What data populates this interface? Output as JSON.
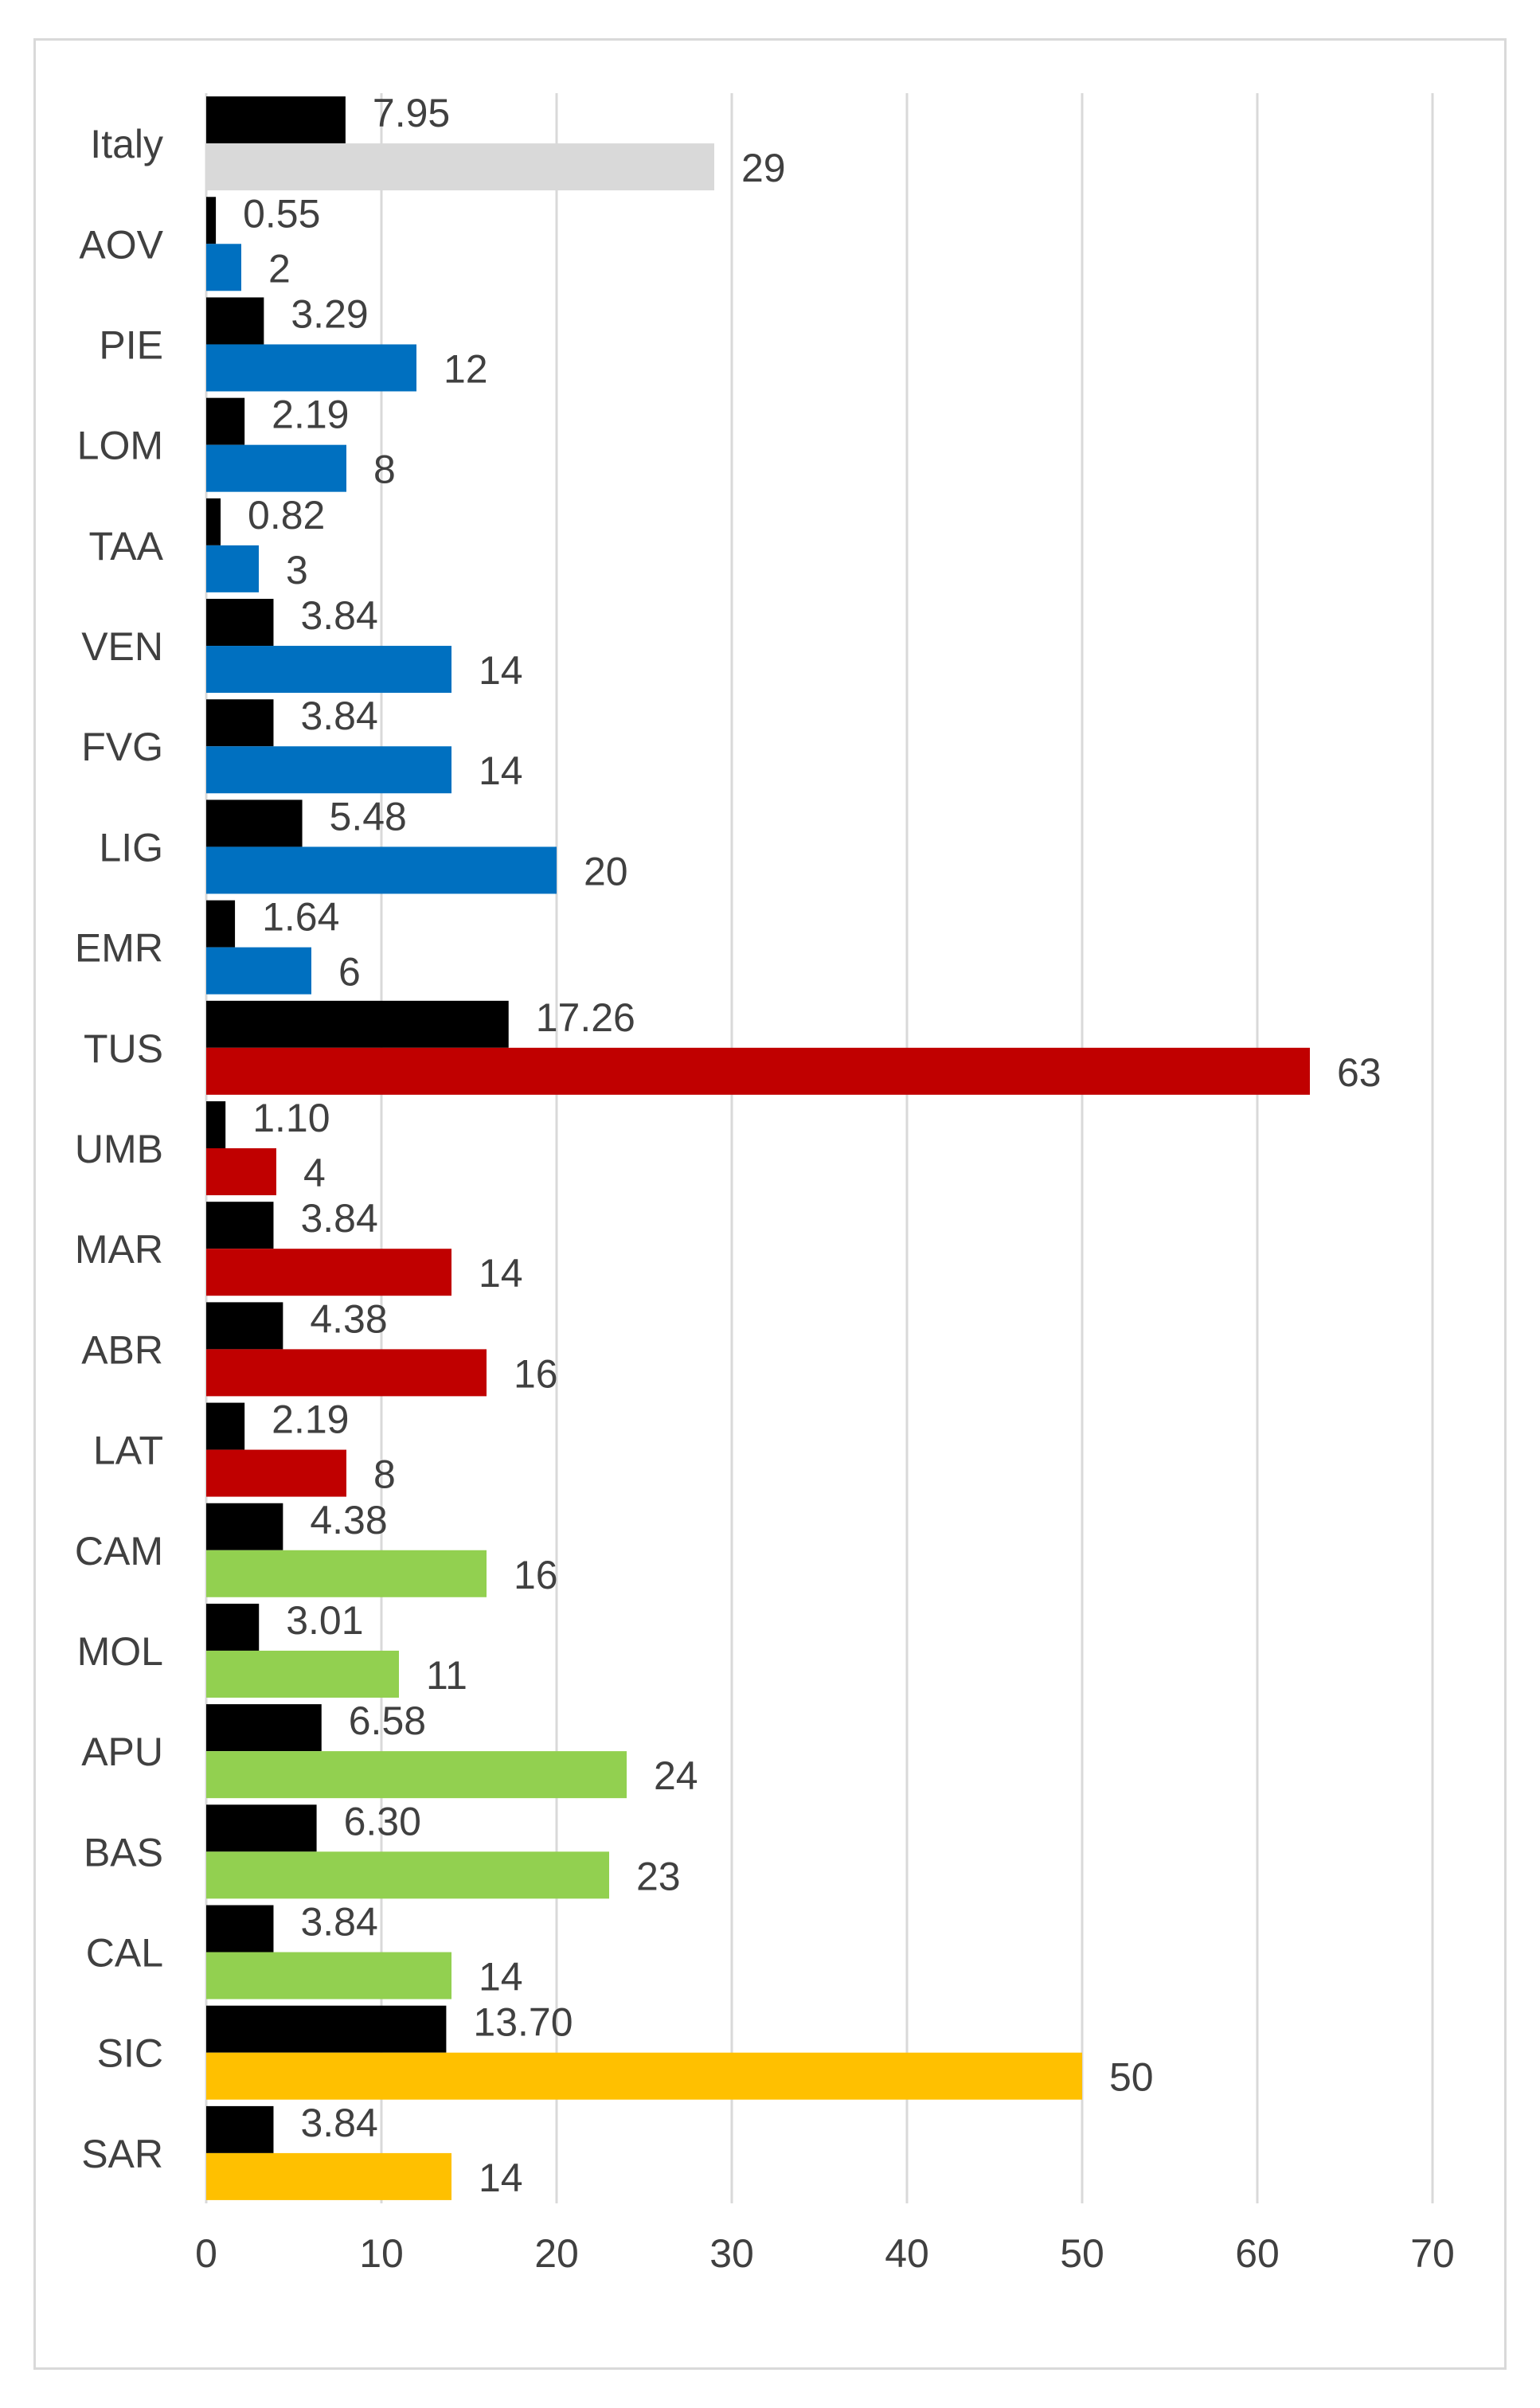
{
  "chart_data": {
    "type": "bar",
    "orientation": "horizontal",
    "categories": [
      "Italy",
      "AOV",
      "PIE",
      "LOM",
      "TAA",
      "VEN",
      "FVG",
      "LIG",
      "EMR",
      "TUS",
      "UMB",
      "MAR",
      "ABR",
      "LAT",
      "CAM",
      "MOL",
      "APU",
      "BAS",
      "CAL",
      "SIC",
      "SAR"
    ],
    "series": [
      {
        "values": [
          7.95,
          0.55,
          3.29,
          2.19,
          0.82,
          3.84,
          3.84,
          5.48,
          1.64,
          17.26,
          1.1,
          3.84,
          4.38,
          2.19,
          4.38,
          3.01,
          6.58,
          6.3,
          3.84,
          13.7,
          3.84
        ],
        "labels": [
          "7.95",
          "0.55",
          "3.29",
          "2.19",
          "0.82",
          "3.84",
          "3.84",
          "5.48",
          "1.64",
          "17.26",
          "1.10",
          "3.84",
          "4.38",
          "2.19",
          "4.38",
          "3.01",
          "6.58",
          "6.30",
          "3.84",
          "13.70",
          "3.84"
        ],
        "color": "#000000"
      },
      {
        "values": [
          29,
          2,
          12,
          8,
          3,
          14,
          14,
          20,
          6,
          63,
          4,
          14,
          16,
          8,
          16,
          11,
          24,
          23,
          14,
          50,
          14
        ],
        "labels": [
          "29",
          "2",
          "12",
          "8",
          "3",
          "14",
          "14",
          "20",
          "6",
          "63",
          "4",
          "14",
          "16",
          "8",
          "16",
          "11",
          "24",
          "23",
          "14",
          "50",
          "14"
        ],
        "colors": [
          "#d9d9d9",
          "#0070c0",
          "#0070c0",
          "#0070c0",
          "#0070c0",
          "#0070c0",
          "#0070c0",
          "#0070c0",
          "#0070c0",
          "#c00000",
          "#c00000",
          "#c00000",
          "#c00000",
          "#c00000",
          "#92d050",
          "#92d050",
          "#92d050",
          "#92d050",
          "#92d050",
          "#ffc000",
          "#ffc000"
        ]
      }
    ],
    "xlim": [
      0,
      70
    ],
    "xticks": [
      "0",
      "10",
      "20",
      "30",
      "40",
      "50",
      "60",
      "70"
    ],
    "grid": true,
    "legend": "none",
    "title": "",
    "xlabel": "",
    "ylabel": ""
  }
}
